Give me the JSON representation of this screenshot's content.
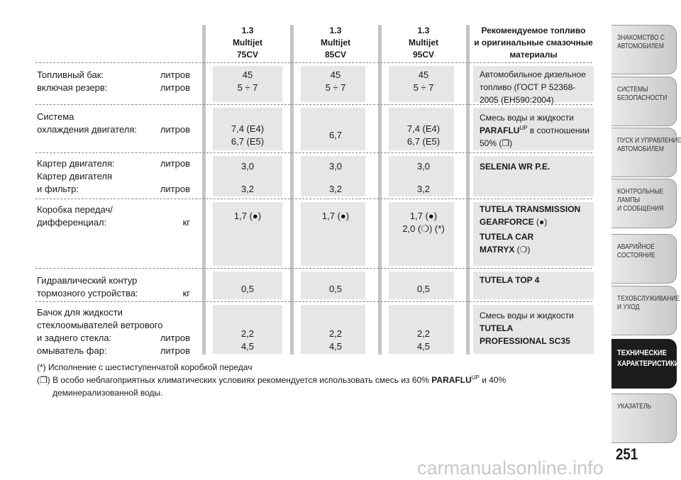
{
  "table": {
    "columns": [
      [
        "1.3",
        "Multijet",
        "75CV"
      ],
      [
        "1.3",
        "Multijet",
        "85CV"
      ],
      [
        "1.3",
        "Multijet",
        "95CV"
      ],
      [
        "Рекомендуемое топливо",
        "и оригинальные смазочные",
        "материалы"
      ]
    ],
    "rows": [
      {
        "label": [
          {
            "text": "Топливный бак:",
            "unit": "литров"
          },
          {
            "text": "включая резерв:",
            "unit": "литров"
          }
        ],
        "values": [
          [
            "45",
            "5 ÷ 7"
          ],
          [
            "45",
            "5 ÷ 7"
          ],
          [
            "45",
            "5 ÷ 7"
          ]
        ],
        "fuel": [
          [
            {
              "text": "Автомобильное дизельное"
            }
          ],
          [
            {
              "text": "топливо (ГОСТ Р 52368-"
            }
          ],
          [
            {
              "text": "2005 (EH590:2004)"
            }
          ]
        ]
      },
      {
        "label": [
          {
            "text": "Система"
          },
          {
            "text": "охлаждения двигателя:",
            "unit": "литров"
          }
        ],
        "values": [
          [
            "7,4 (E4)",
            "6,7 (E5)"
          ],
          [
            "6,7"
          ],
          [
            "7,4 (E4)",
            "6,7 (E5)"
          ]
        ],
        "fuel": [
          [
            {
              "text": "Смесь воды и жидкости"
            }
          ],
          [
            {
              "text": "PARAFLU",
              "style": "bold"
            },
            {
              "text": "UP",
              "style": "sup"
            },
            {
              "text": " в соотношении"
            }
          ],
          [
            {
              "text": "50% (❒)"
            }
          ]
        ]
      },
      {
        "label": [
          {
            "text": "Картер двигателя:",
            "unit": "литров"
          },
          {
            "text": "Картер двигателя"
          },
          {
            "text": "и фильтр:",
            "unit": "литров"
          }
        ],
        "values": [
          [
            "3,0",
            "3,2"
          ],
          [
            "3,0",
            "3,2"
          ],
          [
            "3,0",
            "3,2"
          ]
        ],
        "fuel": [
          [
            {
              "text": "SELENIA WR P.E.",
              "style": "bold"
            }
          ]
        ]
      },
      {
        "label": [
          {
            "text": "Коробка передач/"
          },
          {
            "text": "дифференциал:",
            "unit": "кг"
          }
        ],
        "values": [
          [
            "1,7 (●)"
          ],
          [
            "1,7 (●)"
          ],
          [
            "1,7 (●)",
            "2,0 (❍) (*)"
          ]
        ],
        "fuel": [
          [
            {
              "text": "TUTELA TRANSMISSION",
              "style": "bold"
            }
          ],
          [
            {
              "text": "GEARFORCE",
              "style": "bold"
            },
            {
              "text": " (●)"
            }
          ],
          [
            {
              "text": "TUTELA CAR",
              "style": "bold"
            }
          ],
          [
            {
              "text": "MATRYX",
              "style": "bold"
            },
            {
              "text": " (❍)"
            }
          ]
        ]
      },
      {
        "label": [
          {
            "text": "Гидравлический контур"
          },
          {
            "text": "тормозного устройства:",
            "unit": "кг"
          }
        ],
        "values": [
          [
            "0,5"
          ],
          [
            "0,5"
          ],
          [
            "0,5"
          ]
        ],
        "fuel": [
          [
            {
              "text": "TUTELA TOP 4",
              "style": "bold"
            }
          ]
        ]
      },
      {
        "label": [
          {
            "text": "Бачок для жидкости"
          },
          {
            "text": "стеклоомывателей ветрового"
          },
          {
            "text": "и заднего стекла:",
            "unit": "литров"
          },
          {
            "text": "омыватель фар:",
            "unit": "литров"
          }
        ],
        "values": [
          [
            "2,2",
            "4,5"
          ],
          [
            "2,2",
            "4,5"
          ],
          [
            "2,2",
            "4,5"
          ]
        ],
        "fuel": [
          [
            {
              "text": "Смесь воды и жидкости"
            }
          ],
          [
            {
              "text": "TUTELA",
              "style": "bold"
            }
          ],
          [
            {
              "text": "PROFESSIONAL SC35",
              "style": "bold"
            }
          ]
        ]
      }
    ]
  },
  "footnotes": [
    [
      [
        {
          "text": "(*) Исполнение с шестиступенчатой коробкой передач"
        }
      ]
    ],
    [
      [
        {
          "text": "(❒) В особо неблагоприятных климатических условиях рекомендуется использовать смесь из 60% "
        },
        {
          "text": "PARAFLU",
          "style": "bold"
        },
        {
          "text": "UP",
          "style": "sup"
        },
        {
          "text": " и 40%"
        }
      ],
      [
        {
          "text": "деминерализованной воды."
        }
      ]
    ]
  ],
  "tabs": [
    {
      "lines": [
        "ЗНАКОМСТВО С",
        "АВТОМОБИЛЕМ"
      ]
    },
    {
      "lines": [
        "СИСТЕМЫ",
        "БЕЗОПАСНОСТИ"
      ]
    },
    {
      "lines": [
        "ПУСК И УПРАВЛЕНИЕ",
        "АВТОМОБИЛЕМ"
      ]
    },
    {
      "lines": [
        "КОНТРОЛЬНЫЕ",
        "ЛАМПЫ",
        "И СООБЩЕНИЯ"
      ]
    },
    {
      "lines": [
        "АВАРИЙНОЕ",
        "СОСТОЯНИЕ"
      ]
    },
    {
      "lines": [
        "ТЕХОБСЛУЖИВАНИЕ",
        "И УХОД"
      ]
    },
    {
      "lines": [
        "ТЕХНИЧЕСКИЕ",
        "ХАРАКТЕРИСТИКИ"
      ],
      "active": true
    },
    {
      "lines": [
        "УКАЗАТЕЛЬ"
      ]
    }
  ],
  "page_number": "251",
  "watermark": "carmanualsonline.info"
}
